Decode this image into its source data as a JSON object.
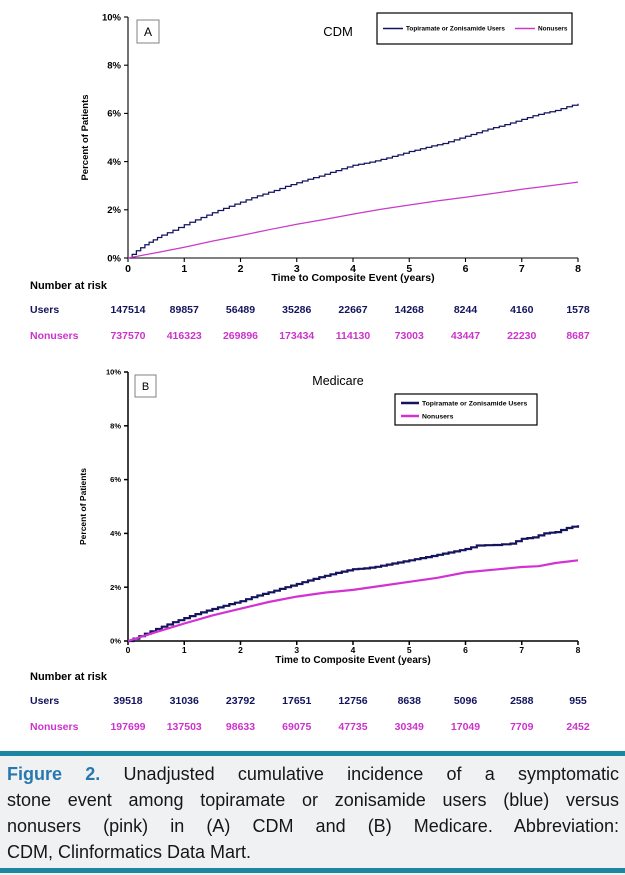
{
  "colors": {
    "users_navy": "#14145e",
    "nonusers_pink_a": "#c93ac9",
    "nonusers_pink_b": "#d232d2",
    "caption_rule_teal": "#1a86a0",
    "figure_label_blue": "#2878b0"
  },
  "chart_data": [
    {
      "type": "line",
      "panel_label": "A",
      "title": "CDM",
      "xlabel": "Time to Composite Event (years)",
      "ylabel": "Percent of Patients",
      "xlim": [
        0,
        8
      ],
      "ylim": [
        0,
        10
      ],
      "xticks": [
        0,
        1,
        2,
        3,
        4,
        5,
        6,
        7,
        8
      ],
      "yticks": [
        "0%",
        "2%",
        "4%",
        "6%",
        "8%",
        "10%"
      ],
      "legend_position": "top-right",
      "grid": false,
      "series": [
        {
          "name": "Topiramate or Zonisamide Users",
          "color": "#14145e",
          "step": true,
          "x": [
            0,
            0.15,
            0.3,
            0.45,
            0.6,
            0.8,
            1,
            1.2,
            1.4,
            1.6,
            1.8,
            2,
            2.2,
            2.4,
            2.6,
            2.8,
            3,
            3.2,
            3.4,
            3.6,
            3.8,
            4,
            4.2,
            4.4,
            4.6,
            4.8,
            5,
            5.2,
            5.4,
            5.6,
            5.8,
            6,
            6.2,
            6.4,
            6.6,
            6.8,
            7,
            7.2,
            7.4,
            7.6,
            7.8,
            8
          ],
          "y": [
            0,
            0.3,
            0.55,
            0.75,
            0.95,
            1.15,
            1.38,
            1.58,
            1.78,
            1.97,
            2.15,
            2.32,
            2.5,
            2.65,
            2.8,
            2.97,
            3.12,
            3.27,
            3.4,
            3.55,
            3.7,
            3.85,
            3.93,
            4.03,
            4.15,
            4.28,
            4.42,
            4.53,
            4.65,
            4.75,
            4.9,
            5.05,
            5.2,
            5.35,
            5.47,
            5.6,
            5.75,
            5.9,
            6.02,
            6.12,
            6.28,
            6.4
          ]
        },
        {
          "name": "Nonusers",
          "color": "#c93ac9",
          "step": false,
          "x": [
            0,
            0.5,
            1,
            1.5,
            2,
            2.5,
            3,
            3.5,
            4,
            4.5,
            5,
            5.5,
            6,
            6.5,
            7,
            7.5,
            8
          ],
          "y": [
            0,
            0.22,
            0.45,
            0.7,
            0.93,
            1.17,
            1.4,
            1.6,
            1.82,
            2.02,
            2.2,
            2.37,
            2.52,
            2.68,
            2.85,
            3.0,
            3.15
          ]
        }
      ],
      "number_at_risk": {
        "label": "Number at risk",
        "times": [
          0,
          1,
          2,
          3,
          4,
          5,
          6,
          7,
          8
        ],
        "rows": [
          {
            "name": "Users",
            "color": "#14145e",
            "values": [
              147514,
              89857,
              56489,
              35286,
              22667,
              14268,
              8244,
              4160,
              1578
            ]
          },
          {
            "name": "Nonusers",
            "color": "#cc33cc",
            "values": [
              737570,
              416323,
              269896,
              173434,
              114130,
              73003,
              43447,
              22230,
              8687
            ]
          }
        ]
      }
    },
    {
      "type": "line",
      "panel_label": "B",
      "title": "Medicare",
      "xlabel": "Time to Composite Event (years)",
      "ylabel": "Percent of Patients",
      "xlim": [
        0,
        8
      ],
      "ylim": [
        0,
        10
      ],
      "xticks": [
        0,
        1,
        2,
        3,
        4,
        5,
        6,
        7,
        8
      ],
      "yticks": [
        "0%",
        "2%",
        "4%",
        "6%",
        "8%",
        "10%"
      ],
      "legend_position": "top-right",
      "grid": false,
      "series": [
        {
          "name": "Topiramate or Zonisamide Users",
          "color": "#14145e",
          "step": true,
          "x": [
            0,
            0.2,
            0.4,
            0.6,
            0.8,
            1,
            1.2,
            1.4,
            1.6,
            1.8,
            2,
            2.2,
            2.4,
            2.6,
            2.8,
            3,
            3.2,
            3.4,
            3.6,
            3.8,
            4,
            4.2,
            4.4,
            4.6,
            4.8,
            5,
            5.2,
            5.4,
            5.6,
            5.8,
            6,
            6.2,
            6.5,
            6.8,
            7,
            7.2,
            7.4,
            7.6,
            7.8,
            8
          ],
          "y": [
            0,
            0.18,
            0.36,
            0.53,
            0.7,
            0.85,
            1.0,
            1.13,
            1.25,
            1.37,
            1.48,
            1.63,
            1.75,
            1.87,
            2.0,
            2.12,
            2.25,
            2.37,
            2.48,
            2.58,
            2.67,
            2.7,
            2.76,
            2.84,
            2.92,
            3.0,
            3.08,
            3.16,
            3.25,
            3.33,
            3.42,
            3.55,
            3.57,
            3.62,
            3.8,
            3.85,
            4.0,
            4.05,
            4.2,
            4.3
          ]
        },
        {
          "name": "Nonusers",
          "color": "#d232d2",
          "step": false,
          "x": [
            0,
            0.5,
            1,
            1.5,
            2,
            2.5,
            3,
            3.5,
            4,
            4.5,
            5,
            5.5,
            6,
            6.5,
            7,
            7.3,
            7.6,
            8
          ],
          "y": [
            0,
            0.33,
            0.65,
            0.95,
            1.2,
            1.45,
            1.65,
            1.8,
            1.9,
            2.05,
            2.2,
            2.35,
            2.55,
            2.65,
            2.75,
            2.78,
            2.9,
            3.0
          ]
        }
      ],
      "number_at_risk": {
        "label": "Number at risk",
        "times": [
          0,
          1,
          2,
          3,
          4,
          5,
          6,
          7,
          8
        ],
        "rows": [
          {
            "name": "Users",
            "color": "#14145e",
            "values": [
              39518,
              31036,
              23792,
              17651,
              12756,
              8638,
              5096,
              2588,
              955
            ]
          },
          {
            "name": "Nonusers",
            "color": "#cc33cc",
            "values": [
              197699,
              137503,
              98633,
              69075,
              47735,
              30349,
              17049,
              7709,
              2452
            ]
          }
        ]
      }
    }
  ],
  "caption": {
    "figure_label": "Figure 2.",
    "lines": [
      "Unadjusted cumulative incidence of a symptomatic",
      "stone event among topiramate or zonisamide users (blue) versus",
      "nonusers (pink) in (A) CDM and (B) Medicare. Abbreviation:",
      "CDM, Clinformatics Data Mart."
    ]
  }
}
